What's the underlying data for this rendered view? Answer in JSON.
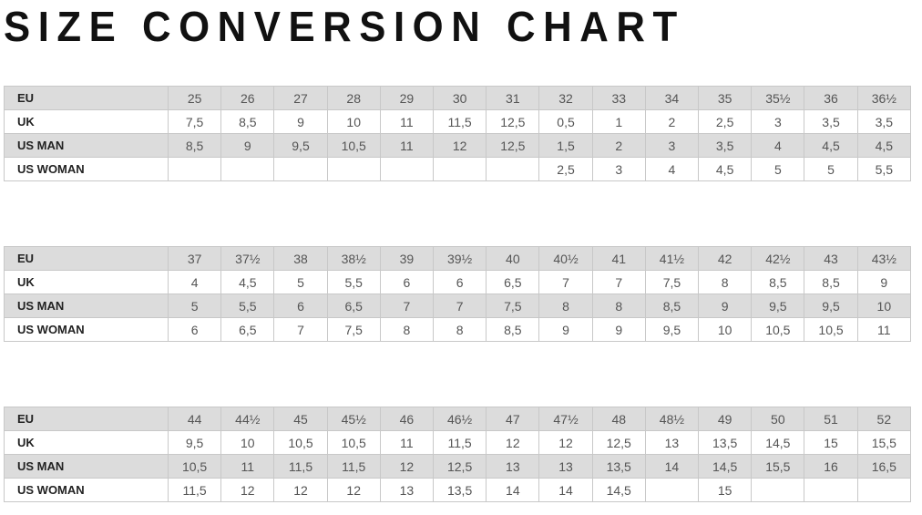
{
  "title": "SIZE CONVERSION CHART",
  "row_labels": [
    "EU",
    "UK",
    "US MAN",
    "US WOMAN"
  ],
  "tables": [
    {
      "rows": [
        [
          "25",
          "26",
          "27",
          "28",
          "29",
          "30",
          "31",
          "32",
          "33",
          "34",
          "35",
          "35½",
          "36",
          "36½"
        ],
        [
          "7,5",
          "8,5",
          "9",
          "10",
          "11",
          "11,5",
          "12,5",
          "0,5",
          "1",
          "2",
          "2,5",
          "3",
          "3,5",
          "3,5"
        ],
        [
          "8,5",
          "9",
          "9,5",
          "10,5",
          "11",
          "12",
          "12,5",
          "1,5",
          "2",
          "3",
          "3,5",
          "4",
          "4,5",
          "4,5"
        ],
        [
          "",
          "",
          "",
          "",
          "",
          "",
          "",
          "2,5",
          "3",
          "4",
          "4,5",
          "5",
          "5",
          "5,5"
        ]
      ]
    },
    {
      "rows": [
        [
          "37",
          "37½",
          "38",
          "38½",
          "39",
          "39½",
          "40",
          "40½",
          "41",
          "41½",
          "42",
          "42½",
          "43",
          "43½"
        ],
        [
          "4",
          "4,5",
          "5",
          "5,5",
          "6",
          "6",
          "6,5",
          "7",
          "7",
          "7,5",
          "8",
          "8,5",
          "8,5",
          "9"
        ],
        [
          "5",
          "5,5",
          "6",
          "6,5",
          "7",
          "7",
          "7,5",
          "8",
          "8",
          "8,5",
          "9",
          "9,5",
          "9,5",
          "10"
        ],
        [
          "6",
          "6,5",
          "7",
          "7,5",
          "8",
          "8",
          "8,5",
          "9",
          "9",
          "9,5",
          "10",
          "10,5",
          "10,5",
          "11"
        ]
      ]
    },
    {
      "rows": [
        [
          "44",
          "44½",
          "45",
          "45½",
          "46",
          "46½",
          "47",
          "47½",
          "48",
          "48½",
          "49",
          "50",
          "51",
          "52"
        ],
        [
          "9,5",
          "10",
          "10,5",
          "10,5",
          "11",
          "11,5",
          "12",
          "12",
          "12,5",
          "13",
          "13,5",
          "14,5",
          "15",
          "15,5"
        ],
        [
          "10,5",
          "11",
          "11,5",
          "11,5",
          "12",
          "12,5",
          "13",
          "13",
          "13,5",
          "14",
          "14,5",
          "15,5",
          "16",
          "16,5"
        ],
        [
          "11,5",
          "12",
          "12",
          "12",
          "13",
          "13,5",
          "14",
          "14",
          "14,5",
          "",
          "15",
          "",
          "",
          ""
        ]
      ]
    }
  ],
  "colors": {
    "row_shade": "#dcdcdc",
    "border": "#c8c8c8",
    "text": "#555555"
  }
}
